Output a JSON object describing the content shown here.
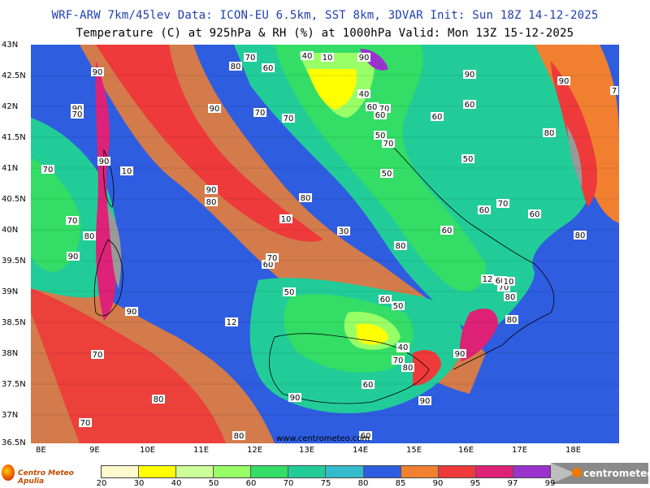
{
  "header": {
    "line1": "WRF-ARW 7km/45lev  Data: ICON-EU 6.5km, SST 8km, 3DVAR  Init: Sun 18Z 14-12-2025",
    "line2": "Temperature (C) at 925hPa & RH (%) at 1000hPa  Valid: Mon 13Z 15-12-2025"
  },
  "axes": {
    "lat_labels": [
      "43N",
      "42.5N",
      "42N",
      "41.5N",
      "41N",
      "40.5N",
      "40N",
      "39.5N",
      "39N",
      "38.5N",
      "38N",
      "37.5N",
      "37N",
      "36.5N"
    ],
    "lon_labels": [
      "8E",
      "9E",
      "10E",
      "11E",
      "12E",
      "13E",
      "14E",
      "15E",
      "16E",
      "17E",
      "18E"
    ]
  },
  "legend": {
    "ticks": [
      "20",
      "30",
      "40",
      "50",
      "60",
      "70",
      "75",
      "80",
      "85",
      "90",
      "95",
      "97",
      "99"
    ],
    "colors": [
      "#fffacd",
      "#ffff00",
      "#ccff99",
      "#99ff66",
      "#33dd66",
      "#22cc99",
      "#33bbcc",
      "#2e5de0",
      "#f08030",
      "#ee3a3a",
      "#dd2277",
      "#9933cc"
    ]
  },
  "contour_labels": [
    {
      "t": "90"
    },
    {
      "t": "70"
    },
    {
      "t": "80"
    },
    {
      "t": "70"
    },
    {
      "t": "60"
    },
    {
      "t": "40"
    },
    {
      "t": "10"
    },
    {
      "t": "90"
    },
    {
      "t": "90"
    },
    {
      "t": "90"
    },
    {
      "t": "7"
    },
    {
      "t": "90"
    },
    {
      "t": "70"
    },
    {
      "t": "40"
    },
    {
      "t": "60"
    },
    {
      "t": "70"
    },
    {
      "t": "60"
    },
    {
      "t": "90"
    },
    {
      "t": "70"
    },
    {
      "t": "60"
    },
    {
      "t": "60"
    },
    {
      "t": "80"
    },
    {
      "t": "50"
    },
    {
      "t": "70"
    },
    {
      "t": "90"
    },
    {
      "t": "10"
    },
    {
      "t": "50"
    },
    {
      "t": "50"
    },
    {
      "t": "70"
    },
    {
      "t": "90"
    },
    {
      "t": "80"
    },
    {
      "t": "80"
    },
    {
      "t": "70"
    },
    {
      "t": "10"
    },
    {
      "t": "70"
    },
    {
      "t": "60"
    },
    {
      "t": "60"
    },
    {
      "t": "60"
    },
    {
      "t": "80"
    },
    {
      "t": "30"
    },
    {
      "t": "80"
    },
    {
      "t": "80"
    },
    {
      "t": "90"
    },
    {
      "t": "60"
    },
    {
      "t": "70"
    },
    {
      "t": "12"
    },
    {
      "t": "70"
    },
    {
      "t": "60"
    },
    {
      "t": "10"
    },
    {
      "t": "50"
    },
    {
      "t": "60"
    },
    {
      "t": "50"
    },
    {
      "t": "80"
    },
    {
      "t": "90"
    },
    {
      "t": "12"
    },
    {
      "t": "80"
    },
    {
      "t": "70"
    },
    {
      "t": "40"
    },
    {
      "t": "70"
    },
    {
      "t": "90"
    },
    {
      "t": "80"
    },
    {
      "t": "70"
    },
    {
      "t": "60"
    },
    {
      "t": "90"
    },
    {
      "t": "80"
    },
    {
      "t": "90"
    },
    {
      "t": "70"
    },
    {
      "t": "80"
    },
    {
      "t": "60"
    }
  ],
  "watermark": "www.centrometeo.com",
  "logo_left": "Centro Meteo Apulia",
  "logo_right": "centrometeo"
}
